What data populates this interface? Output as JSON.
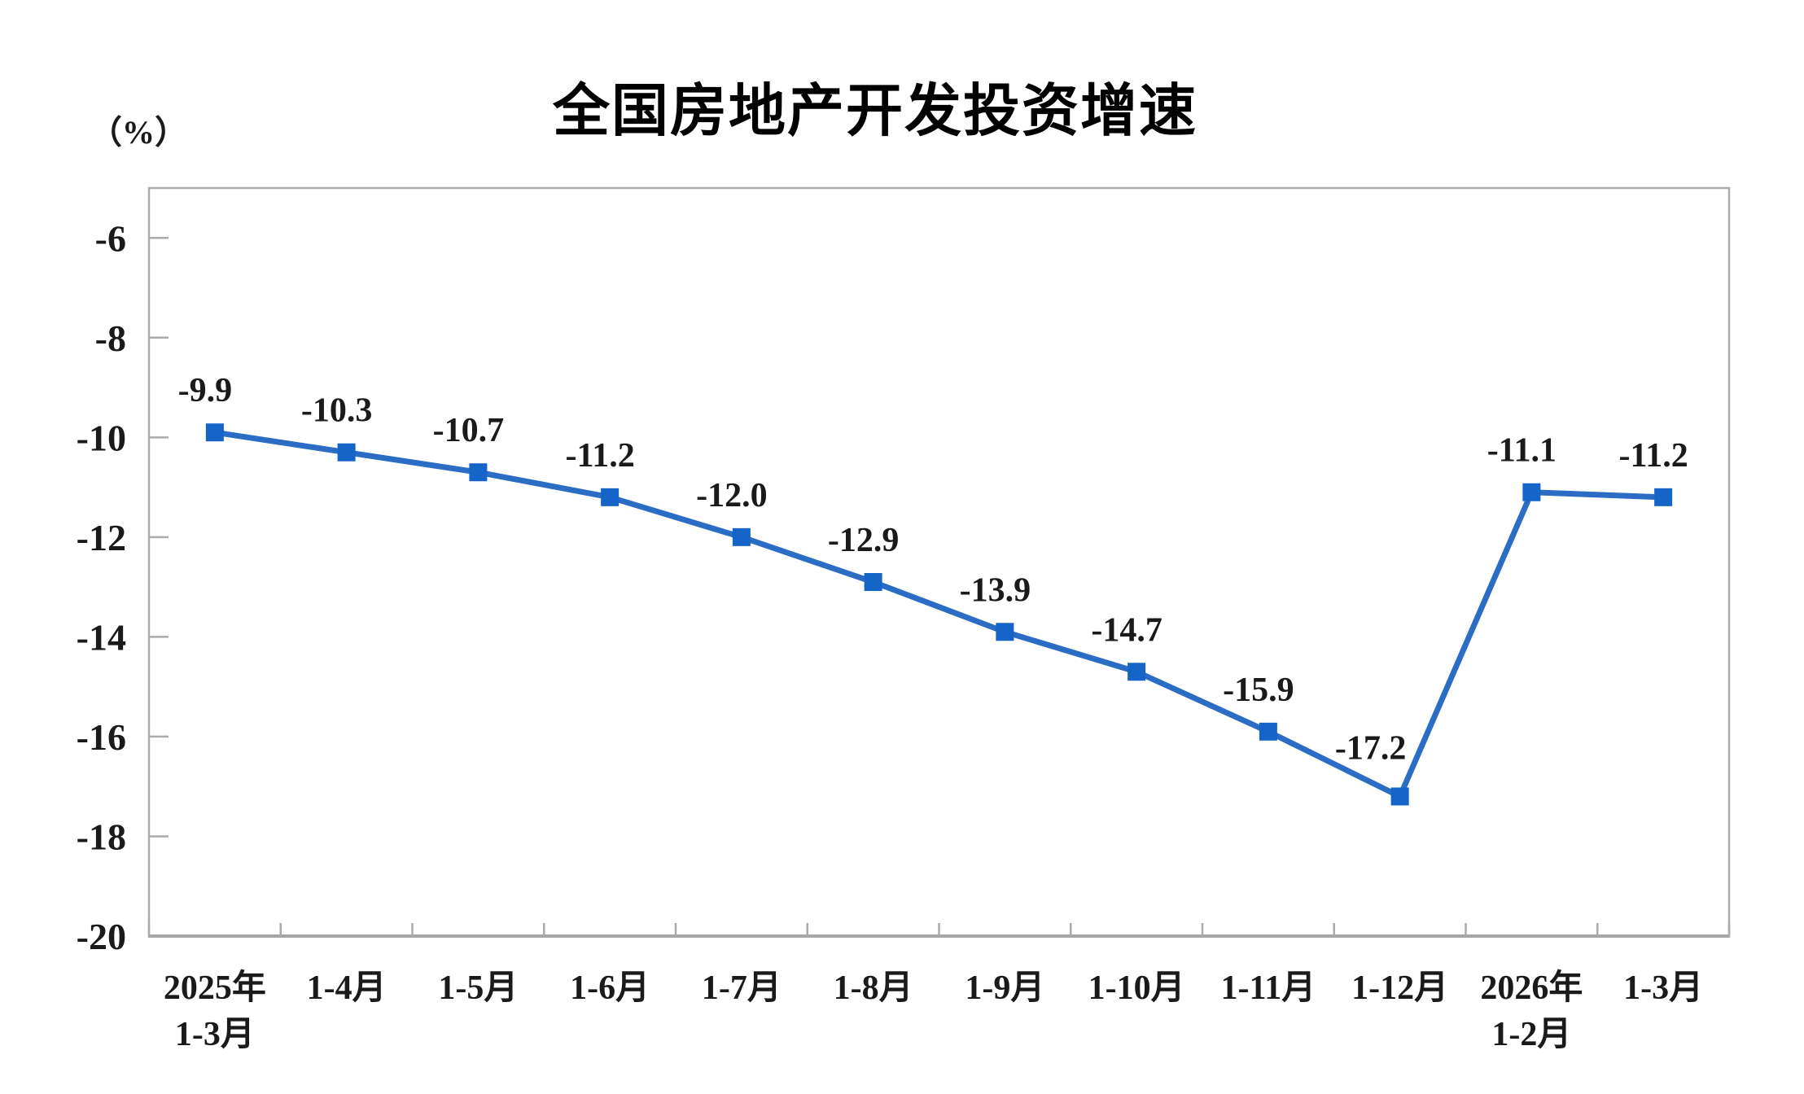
{
  "chart_data": {
    "type": "line",
    "title": "全国房地产开发投资增速",
    "unit_label": "（%）",
    "categories": [
      [
        "2025年",
        "1-3月"
      ],
      [
        "1-4月"
      ],
      [
        "1-5月"
      ],
      [
        "1-6月"
      ],
      [
        "1-7月"
      ],
      [
        "1-8月"
      ],
      [
        "1-9月"
      ],
      [
        "1-10月"
      ],
      [
        "1-11月"
      ],
      [
        "1-12月"
      ],
      [
        "2026年",
        "1-2月"
      ],
      [
        "1-3月"
      ]
    ],
    "values": [
      -9.9,
      -10.3,
      -10.7,
      -11.2,
      -12.0,
      -12.9,
      -13.9,
      -14.7,
      -15.9,
      -17.2,
      -11.1,
      -11.2
    ],
    "data_labels": [
      "-9.9",
      "-10.3",
      "-10.7",
      "-11.2",
      "-12.0",
      "-12.9",
      "-13.9",
      "-14.7",
      "-15.9",
      "-17.2",
      "-11.1",
      "-11.2"
    ],
    "series_name": "全国房地产开发投资增速",
    "y_ticks": [
      -6,
      -8,
      -10,
      -12,
      -14,
      -16,
      -18,
      -20
    ],
    "y_axis": {
      "min": -20,
      "max": -5
    },
    "grid": false,
    "legend": "none",
    "marker_shape": "square",
    "colors": {
      "line": "#2B6CC4",
      "marker": "#1565C8",
      "axis": "#ABABAB",
      "axis_bottom": "#A6A6A6",
      "text": "#1A1A1A",
      "title": "#000000"
    }
  }
}
